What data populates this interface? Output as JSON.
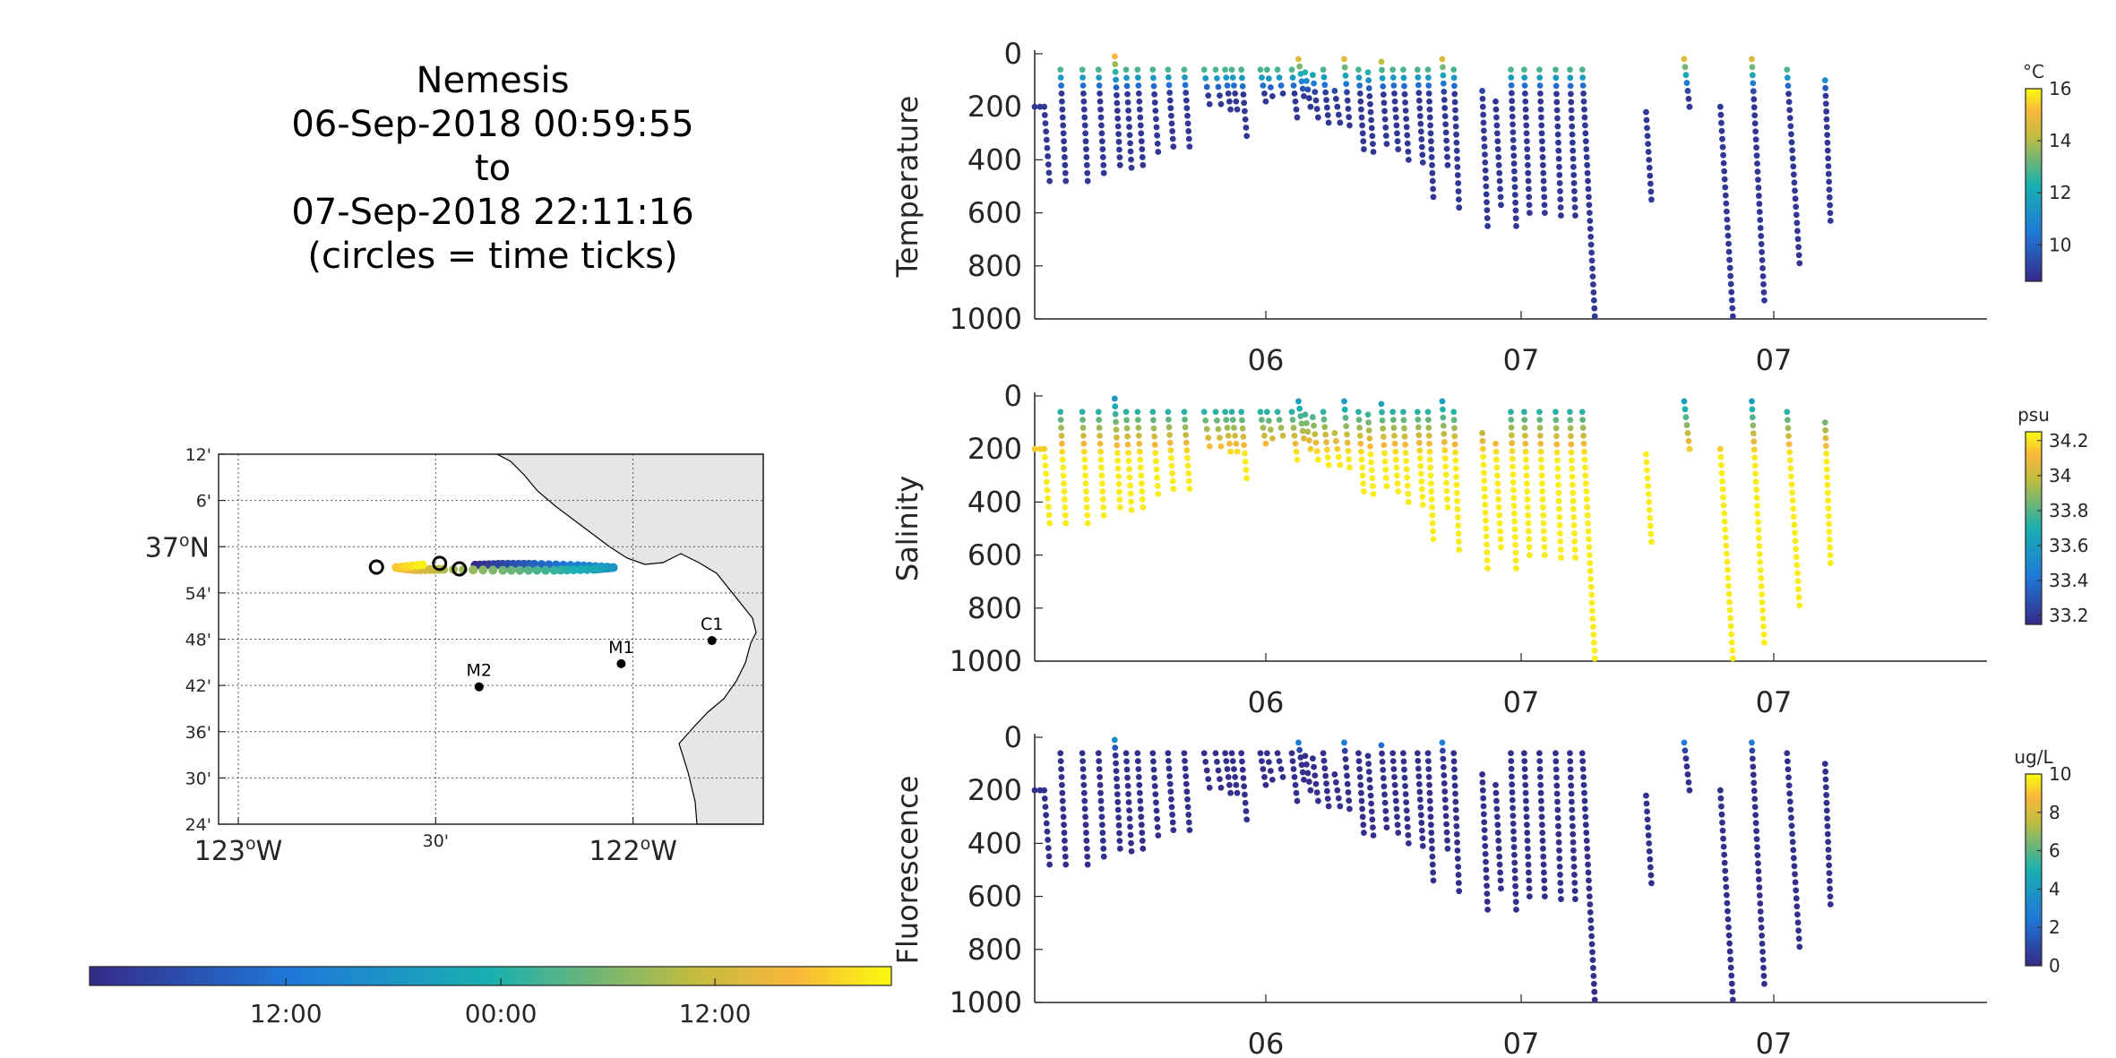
{
  "title": {
    "platform": "Nemesis",
    "start": "06-Sep-2018 00:59:55",
    "to": "to",
    "end": "07-Sep-2018 22:11:16",
    "note": "(circles = time ticks)"
  },
  "map": {
    "lat_ticks": [
      "12'",
      "6'",
      "37°N",
      "54'",
      "48'",
      "42'",
      "36'",
      "30'",
      "24'"
    ],
    "lon_ticks": [
      "123°W",
      "30'",
      "122°W"
    ],
    "lon_range": [
      -123.05,
      -121.67
    ],
    "lat_range": [
      36.4,
      37.2
    ],
    "moorings": [
      {
        "name": "C1",
        "lon": -121.8,
        "lat": 36.797
      },
      {
        "name": "M1",
        "lon": -122.03,
        "lat": 36.747
      },
      {
        "name": "M2",
        "lon": -122.39,
        "lat": 36.697
      }
    ],
    "track": [
      [
        -122.4,
        36.96
      ],
      [
        -122.33,
        36.962
      ],
      [
        -122.25,
        36.962
      ],
      [
        -122.14,
        36.959
      ],
      [
        -122.05,
        36.955
      ],
      [
        -122.1,
        36.951
      ],
      [
        -122.2,
        36.949
      ],
      [
        -122.33,
        36.949
      ],
      [
        -122.48,
        36.951
      ],
      [
        -122.55,
        36.95
      ],
      [
        -122.6,
        36.955
      ],
      [
        -122.52,
        36.962
      ]
    ],
    "time_ticks": [
      [
        -122.49,
        36.964
      ],
      [
        -122.44,
        36.952
      ],
      [
        -122.65,
        36.956
      ]
    ],
    "land_color": "#e6e6e6",
    "grid": true
  },
  "time_colorbar": {
    "ticks": [
      "12:00",
      "00:00",
      "12:00"
    ],
    "tick_positions": [
      0.245,
      0.513,
      0.78
    ]
  },
  "chart_data": [
    {
      "type": "scatter",
      "ylabel": "Temperature",
      "colorbar_unit": "°C",
      "colorbar_ticks": [
        "16",
        "14",
        "12",
        "10"
      ],
      "clim": [
        8.6,
        16
      ],
      "xticks": [
        "06",
        "07",
        "07"
      ],
      "yticks": [
        "0",
        "200",
        "400",
        "600",
        "800",
        "1000"
      ],
      "ylim": [
        1000,
        0
      ],
      "surface_value": 15.5,
      "deep_value": 8.9,
      "gradient_depth": 150
    },
    {
      "type": "scatter",
      "ylabel": "Salinity",
      "colorbar_unit": "psu",
      "colorbar_ticks": [
        "34.2",
        "34",
        "33.8",
        "33.6",
        "33.4",
        "33.2"
      ],
      "clim": [
        33.15,
        34.25
      ],
      "xticks": [
        "06",
        "07",
        "07"
      ],
      "yticks": [
        "0",
        "200",
        "400",
        "600",
        "800",
        "1000"
      ],
      "ylim": [
        1000,
        0
      ],
      "surface_value": 33.55,
      "deep_value": 34.22,
      "gradient_depth": 220
    },
    {
      "type": "scatter",
      "ylabel": "Fluorescence",
      "colorbar_unit": "ug/L",
      "colorbar_ticks": [
        "10",
        "8",
        "6",
        "4",
        "2",
        "0"
      ],
      "clim": [
        0,
        10
      ],
      "xticks": [
        "06",
        "07",
        "07"
      ],
      "yticks": [
        "0",
        "200",
        "400",
        "600",
        "800",
        "1000"
      ],
      "ylim": [
        1000,
        0
      ],
      "surface_value": 4.0,
      "deep_value": 0.2,
      "gradient_depth": 60
    }
  ],
  "profiles": [
    {
      "t": 0.0,
      "top": 200,
      "bot": 200
    },
    {
      "t": 0.01,
      "top": 200,
      "bot": 480
    },
    {
      "t": 0.027,
      "top": 60,
      "bot": 480
    },
    {
      "t": 0.05,
      "top": 60,
      "bot": 480
    },
    {
      "t": 0.067,
      "top": 60,
      "bot": 450
    },
    {
      "t": 0.084,
      "top": 10,
      "bot": 420
    },
    {
      "t": 0.096,
      "top": 60,
      "bot": 430
    },
    {
      "t": 0.108,
      "top": 60,
      "bot": 420
    },
    {
      "t": 0.124,
      "top": 60,
      "bot": 370
    },
    {
      "t": 0.14,
      "top": 60,
      "bot": 350
    },
    {
      "t": 0.157,
      "top": 60,
      "bot": 350
    },
    {
      "t": 0.178,
      "top": 60,
      "bot": 190
    },
    {
      "t": 0.19,
      "top": 60,
      "bot": 190
    },
    {
      "t": 0.2,
      "top": 60,
      "bot": 210
    },
    {
      "t": 0.207,
      "top": 60,
      "bot": 210
    },
    {
      "t": 0.217,
      "top": 60,
      "bot": 310
    },
    {
      "t": 0.237,
      "top": 60,
      "bot": 180
    },
    {
      "t": 0.244,
      "top": 60,
      "bot": 160
    },
    {
      "t": 0.255,
      "top": 60,
      "bot": 150
    },
    {
      "t": 0.27,
      "top": 60,
      "bot": 240
    },
    {
      "t": 0.277,
      "top": 20,
      "bot": 160
    },
    {
      "t": 0.284,
      "top": 70,
      "bot": 200
    },
    {
      "t": 0.292,
      "top": 80,
      "bot": 240
    },
    {
      "t": 0.303,
      "top": 60,
      "bot": 260
    },
    {
      "t": 0.315,
      "top": 140,
      "bot": 260
    },
    {
      "t": 0.325,
      "top": 20,
      "bot": 270
    },
    {
      "t": 0.34,
      "top": 60,
      "bot": 360
    },
    {
      "t": 0.35,
      "top": 70,
      "bot": 370
    },
    {
      "t": 0.364,
      "top": 30,
      "bot": 340
    },
    {
      "t": 0.376,
      "top": 60,
      "bot": 360
    },
    {
      "t": 0.387,
      "top": 60,
      "bot": 400
    },
    {
      "t": 0.402,
      "top": 60,
      "bot": 410
    },
    {
      "t": 0.413,
      "top": 60,
      "bot": 540
    },
    {
      "t": 0.428,
      "top": 20,
      "bot": 420
    },
    {
      "t": 0.44,
      "top": 60,
      "bot": 580
    },
    {
      "t": 0.47,
      "top": 140,
      "bot": 650
    },
    {
      "t": 0.484,
      "top": 180,
      "bot": 570
    },
    {
      "t": 0.5,
      "top": 60,
      "bot": 650
    },
    {
      "t": 0.514,
      "top": 60,
      "bot": 600
    },
    {
      "t": 0.53,
      "top": 60,
      "bot": 600
    },
    {
      "t": 0.547,
      "top": 60,
      "bot": 610
    },
    {
      "t": 0.562,
      "top": 60,
      "bot": 610
    },
    {
      "t": 0.575,
      "top": 60,
      "bot": 990
    },
    {
      "t": 0.642,
      "top": 220,
      "bot": 550
    },
    {
      "t": 0.682,
      "top": 20,
      "bot": 200
    },
    {
      "t": 0.72,
      "top": 200,
      "bot": 990
    },
    {
      "t": 0.753,
      "top": 20,
      "bot": 930
    },
    {
      "t": 0.79,
      "top": 60,
      "bot": 790
    },
    {
      "t": 0.83,
      "top": 100,
      "bot": 630
    }
  ],
  "colors": {
    "parula_dark": "#352a87",
    "parula_blue": "#1f78d8",
    "parula_teal": "#18b0b0",
    "parula_green": "#8bc543",
    "parula_yellow": "#f9fb0e"
  }
}
